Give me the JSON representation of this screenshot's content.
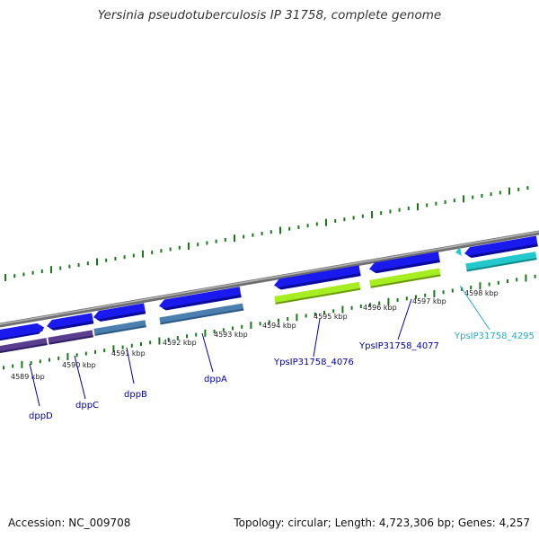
{
  "title": "Yersinia pseudotuberculosis IP 31758, complete genome",
  "footer": {
    "accession": "Accession: NC_009708",
    "summary": "Topology: circular; Length: 4,723,306 bp; Genes: 4,257"
  },
  "map": {
    "tick_labels": [
      "4589 kbp",
      "4590 kbp",
      "4591 kbp",
      "4592 kbp",
      "4593 kbp",
      "4594 kbp",
      "4595 kbp",
      "4596 kbp",
      "4597 kbp",
      "4598 kbp"
    ],
    "genes": [
      {
        "name": "dppD",
        "color": "#0000aa"
      },
      {
        "name": "dppC",
        "color": "#0000aa"
      },
      {
        "name": "dppB",
        "color": "#0000aa"
      },
      {
        "name": "dppA",
        "color": "#0000aa"
      },
      {
        "name": "YpsIP31758_4076",
        "color": "#0000aa"
      },
      {
        "name": "YpsIP31758_4077",
        "color": "#0000aa"
      },
      {
        "name": "YpsIP31758_4295",
        "color": "#22aacc"
      }
    ],
    "colors": {
      "backbone": "#8c8c8c",
      "gene_arrow": "#1a1aee",
      "cds_purple": "#5a3d8f",
      "cds_steelblue": "#4a7fb0",
      "cds_green": "#a6ee22",
      "cds_cyan": "#22c8cc",
      "tick": "#1a7a1a"
    }
  }
}
